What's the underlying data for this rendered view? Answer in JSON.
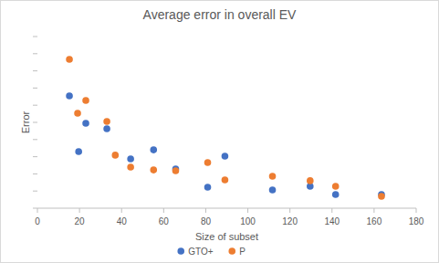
{
  "chart_data": {
    "type": "scatter",
    "title": "Average error in overall EV",
    "x_label": "Size of subset",
    "y_label": "Error",
    "xlim": [
      0,
      180
    ],
    "xticks": [
      0,
      20,
      40,
      60,
      80,
      100,
      120,
      140,
      160,
      180
    ],
    "ylim": [
      0,
      10
    ],
    "yticks": [
      0,
      1,
      2,
      3,
      4,
      5,
      6,
      7,
      8,
      9,
      10
    ],
    "tick_labels": "x",
    "grid": false,
    "legend": "bottom",
    "series": [
      {
        "name": "GTO+",
        "color": "#4472c4",
        "marker": "circle",
        "x": [
          15.2,
          19.6,
          23.0,
          33.0,
          44.3,
          55.2,
          65.7,
          80.9,
          89.1,
          111.7,
          129.6,
          141.7,
          163.5
        ],
        "values": [
          6.54,
          3.3,
          4.95,
          4.63,
          2.87,
          3.4,
          2.29,
          1.22,
          3.03,
          1.06,
          1.28,
          0.8,
          0.8
        ]
      },
      {
        "name": "P",
        "color": "#ed7d31",
        "marker": "circle",
        "x": [
          15.2,
          19.1,
          23.0,
          33.0,
          37.0,
          44.3,
          55.2,
          65.7,
          80.9,
          89.1,
          111.7,
          129.6,
          141.7,
          163.5
        ],
        "values": [
          8.67,
          5.53,
          6.28,
          5.05,
          3.09,
          2.39,
          2.23,
          2.18,
          2.66,
          1.65,
          1.86,
          1.6,
          1.28,
          0.69
        ]
      }
    ]
  }
}
